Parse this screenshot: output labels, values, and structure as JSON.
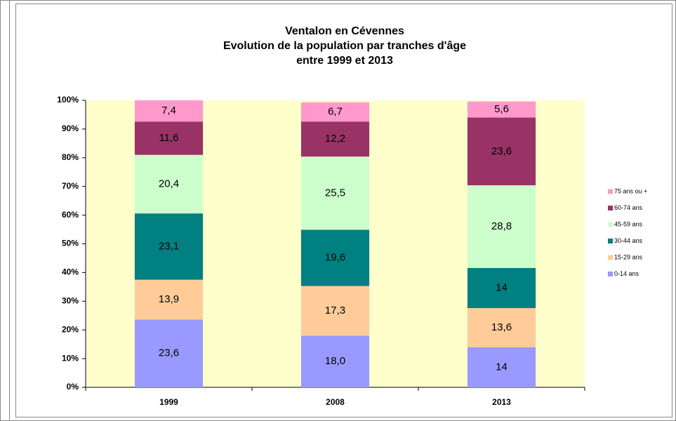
{
  "chart_data": {
    "type": "stacked_bar",
    "title": [
      "Ventalon en Cévennes",
      "Evolution de la population par tranches d'âge",
      "entre 1999 et 2013"
    ],
    "categories": [
      "1999",
      "2008",
      "2013"
    ],
    "series": [
      {
        "name": "0-14 ans",
        "color": "#9999ff",
        "values": [
          23.6,
          18.0,
          14
        ],
        "value_labels": [
          "23,6",
          "18,0",
          "14"
        ]
      },
      {
        "name": "15-29 ans",
        "color": "#ffcc99",
        "values": [
          13.9,
          17.3,
          13.6
        ],
        "value_labels": [
          "13,9",
          "17,3",
          "13,6"
        ]
      },
      {
        "name": "30-44 ans",
        "color": "#008080",
        "values": [
          23.1,
          19.6,
          14
        ],
        "value_labels": [
          "23,1",
          "19,6",
          "14"
        ]
      },
      {
        "name": "45-59 ans",
        "color": "#ccffcc",
        "values": [
          20.4,
          25.5,
          28.8
        ],
        "value_labels": [
          "20,4",
          "25,5",
          "28,8"
        ]
      },
      {
        "name": "60-74 ans",
        "color": "#993366",
        "values": [
          11.6,
          12.2,
          23.6
        ],
        "value_labels": [
          "11,6",
          "12,2",
          "23,6"
        ]
      },
      {
        "name": "75 ans ou +",
        "color": "#ff99cc",
        "values": [
          7.4,
          6.7,
          5.6
        ],
        "value_labels": [
          "7,4",
          "6,7",
          "5,6"
        ]
      }
    ],
    "ylim": [
      0,
      100
    ],
    "yticks": [
      {
        "value": 0,
        "label": "0%"
      },
      {
        "value": 10,
        "label": "10%"
      },
      {
        "value": 20,
        "label": "20%"
      },
      {
        "value": 30,
        "label": "30%"
      },
      {
        "value": 40,
        "label": "40%"
      },
      {
        "value": 50,
        "label": "50%"
      },
      {
        "value": 60,
        "label": "60%"
      },
      {
        "value": 70,
        "label": "70%"
      },
      {
        "value": 80,
        "label": "80%"
      },
      {
        "value": 90,
        "label": "90%"
      },
      {
        "value": 100,
        "label": "100%"
      }
    ],
    "grid": false,
    "plot_background": "#ffffcc",
    "legend": "right"
  }
}
